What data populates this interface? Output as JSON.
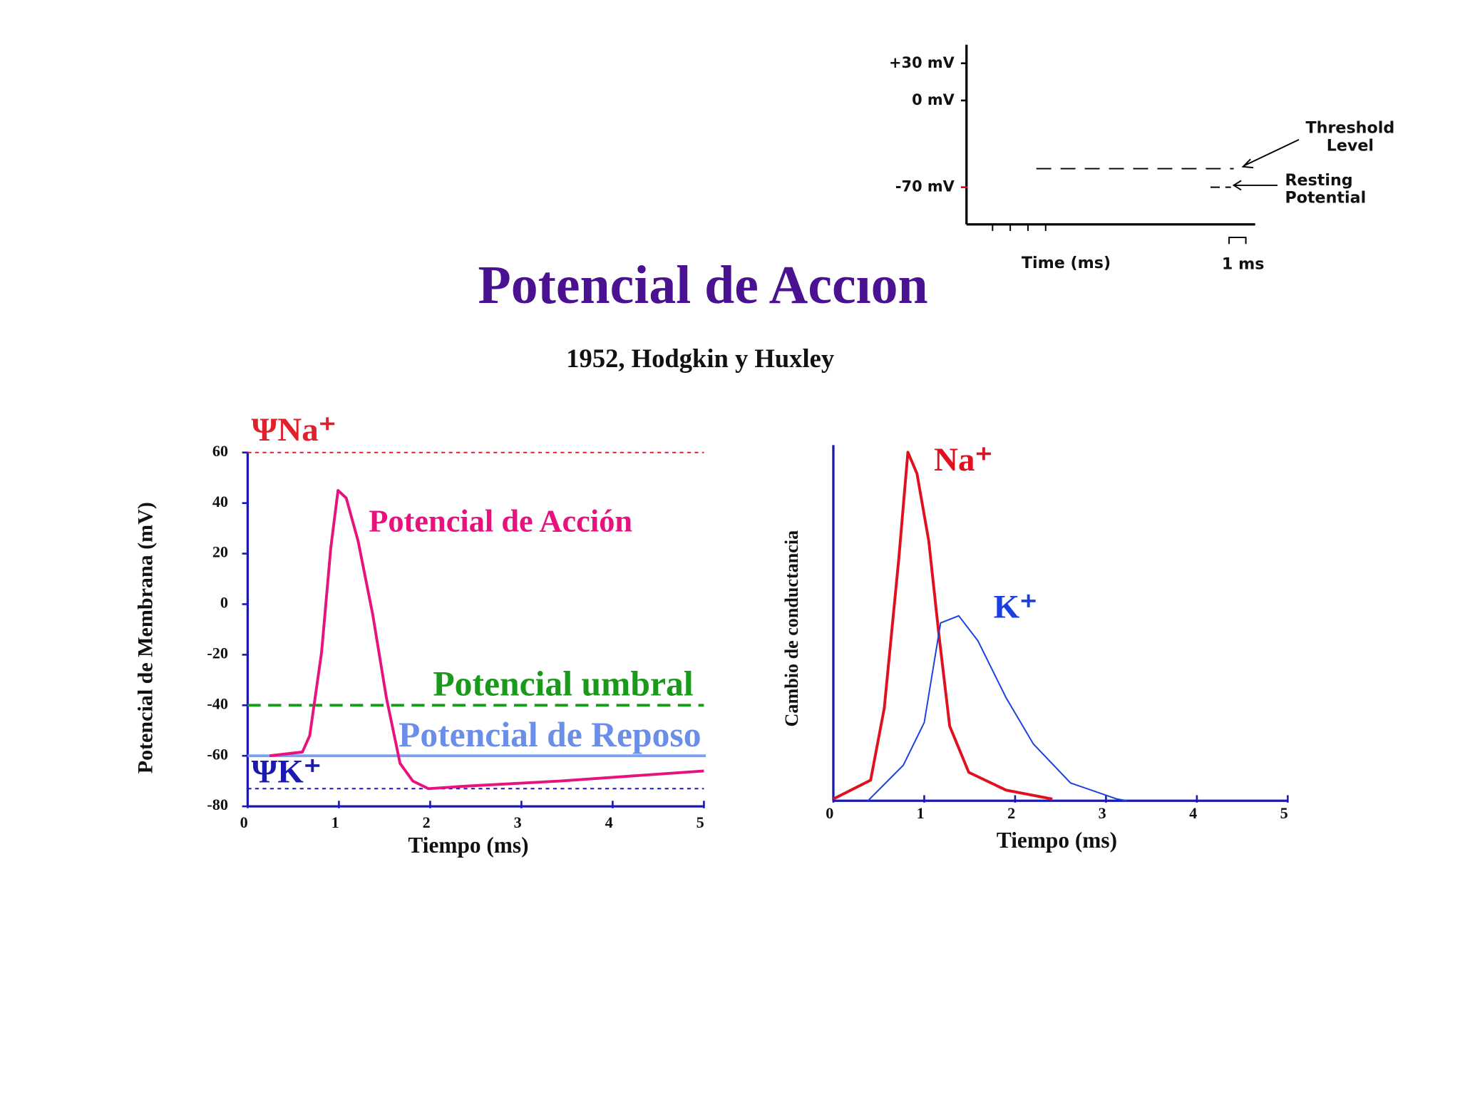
{
  "slide": {
    "title": "Potencial de Accıon",
    "subtitle": "1952, Hodgkin y Huxley"
  },
  "chart_data": [
    {
      "type": "line",
      "xlabel": "Time (ms)",
      "scale_bar_label": "1 ms",
      "ylim": [
        -100,
        45
      ],
      "yticks": [
        {
          "value": 30,
          "label": "+30 mV"
        },
        {
          "value": 0,
          "label": "0 mV"
        },
        {
          "value": -70,
          "label": "-70 mV"
        }
      ],
      "reference_lines": [
        {
          "label_lines": [
            "Threshold",
            "Level"
          ],
          "value": -55,
          "color": "#000000"
        },
        {
          "label_lines": [
            "Resting",
            "Potential"
          ],
          "value": -70,
          "color": "#000000"
        }
      ]
    },
    {
      "type": "line",
      "xlabel": "Tiempo (ms)",
      "ylabel": "Potencial de Membrana (mV)",
      "xlim": [
        0,
        5
      ],
      "xticks": [
        0,
        1,
        2,
        3,
        4,
        5
      ],
      "ylim": [
        -80,
        60
      ],
      "yticks": [
        -80,
        -60,
        -40,
        -20,
        0,
        20,
        40,
        60
      ],
      "series": [
        {
          "name": "Potencial de Acción",
          "color": "#e8127f",
          "x": [
            0.24,
            0.6,
            0.68,
            0.81,
            0.91,
            0.99,
            1.08,
            1.21,
            1.37,
            1.52,
            1.67,
            1.81,
            1.98,
            2.39,
            3.41,
            5
          ],
          "values": [
            -60,
            -58.5,
            -52,
            -19,
            22,
            45,
            42,
            25,
            -4,
            -37,
            -63,
            -70,
            -73,
            -72,
            -70,
            -66
          ]
        }
      ],
      "reference_lines": [
        {
          "label": "ΨNa⁺",
          "value": 60,
          "color": "#e0202a"
        },
        {
          "label": "Potencial umbral",
          "value": -40,
          "color": "#1a9a1a"
        },
        {
          "label": "Potencial de Reposo",
          "value": -60,
          "color": "#7aa2f0"
        },
        {
          "label": "ΨK⁺",
          "value": -73,
          "color": "#1a1ab0"
        }
      ]
    },
    {
      "type": "line",
      "xlabel": "Tiempo (ms)",
      "ylabel": "Cambio de conductancia",
      "xlim": [
        0,
        5
      ],
      "xticks": [
        0,
        1,
        2,
        3,
        4,
        5
      ],
      "ylim": [
        0,
        1
      ],
      "series": [
        {
          "name": "Na⁺",
          "color": "#e0101e",
          "x": [
            0,
            0.41,
            0.56,
            0.72,
            0.82,
            0.92,
            1.05,
            1.16,
            1.28,
            1.49,
            1.9,
            2.41
          ],
          "values": [
            0.005,
            0.058,
            0.26,
            0.68,
            0.98,
            0.92,
            0.73,
            0.47,
            0.21,
            0.08,
            0.03,
            0.005
          ]
        },
        {
          "name": "K⁺",
          "color": "#1a3ee0",
          "x": [
            0.38,
            0.77,
            1.0,
            1.18,
            1.38,
            1.59,
            1.9,
            2.2,
            2.61,
            3.12,
            3.23
          ],
          "values": [
            0,
            0.1,
            0.22,
            0.5,
            0.52,
            0.45,
            0.29,
            0.16,
            0.05,
            0.005,
            0
          ]
        }
      ]
    }
  ]
}
